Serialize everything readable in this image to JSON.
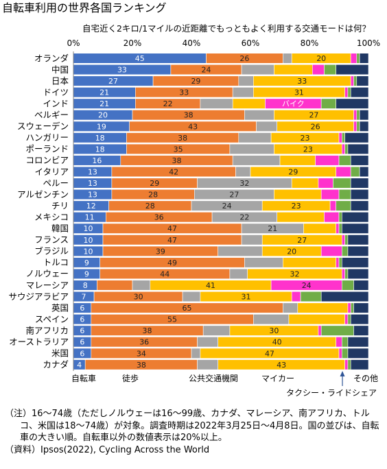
{
  "chart_data": {
    "type": "bar",
    "orientation": "horizontal",
    "stacked": true,
    "title": "自転車利用の世界各国ランキング",
    "subtitle": "自宅近く2キロ/1マイルの近距離でもっともよく利用する交通モードは何？",
    "xlim": [
      0,
      100
    ],
    "x_ticks": [
      "0%",
      "20%",
      "40%",
      "60%",
      "80%",
      "100%"
    ],
    "grid": false,
    "legend_position": "bottom",
    "categories": [
      "オランダ",
      "中国",
      "日本",
      "ドイツ",
      "インド",
      "ベルギー",
      "スウェーデン",
      "ハンガリー",
      "ポーランド",
      "コロンビア",
      "イタリア",
      "ペルー",
      "アルゼンチン",
      "チリ",
      "メキシコ",
      "韓国",
      "フランス",
      "ブラジル",
      "トルコ",
      "ノルウェー",
      "マレーシア",
      "サウジアラビア",
      "英国",
      "スペイン",
      "南アフリカ",
      "オーストラリア",
      "米国",
      "カナダ"
    ],
    "series": [
      {
        "name": "自転車",
        "color": "#4472C4",
        "values": [
          45,
          33,
          27,
          21,
          21,
          20,
          19,
          18,
          18,
          16,
          13,
          13,
          13,
          12,
          11,
          10,
          10,
          10,
          9,
          9,
          8,
          7,
          6,
          6,
          6,
          6,
          6,
          4
        ]
      },
      {
        "name": "徒歩",
        "color": "#ED7D31",
        "values": [
          26,
          24,
          29,
          33,
          22,
          38,
          43,
          38,
          35,
          38,
          42,
          29,
          28,
          28,
          36,
          47,
          47,
          39,
          49,
          44,
          12,
          30,
          65,
          55,
          38,
          36,
          34,
          38
        ]
      },
      {
        "name": "公共交通機関",
        "color": "#A5A5A5",
        "values": [
          3,
          11,
          5,
          7,
          11,
          10,
          7,
          11,
          15,
          16,
          5,
          32,
          27,
          24,
          22,
          21,
          7,
          15,
          13,
          6,
          6,
          6,
          5,
          12,
          9,
          7,
          3,
          7
        ]
      },
      {
        "name": "マイカー",
        "color": "#FFC000",
        "values": [
          20,
          13,
          33,
          31,
          11,
          27,
          26,
          23,
          23,
          12,
          29,
          9,
          16,
          23,
          16,
          11,
          27,
          20,
          18,
          32,
          41,
          31,
          17,
          19,
          30,
          40,
          47,
          43
        ]
      },
      {
        "name": "バイク",
        "color": "#FF33CC",
        "values": [
          2,
          4,
          1,
          1,
          19,
          1,
          1,
          1,
          1,
          8,
          5,
          5,
          6,
          2,
          5,
          1,
          1,
          7,
          1,
          1,
          24,
          3,
          1,
          1,
          1,
          2,
          1,
          1
        ]
      },
      {
        "name": "タクシー・ライドシェア",
        "color": "#70AD47",
        "values": [
          1,
          4,
          1,
          1,
          5,
          1,
          1,
          1,
          1,
          4,
          3,
          6,
          4,
          5,
          1,
          1,
          1,
          2,
          1,
          1,
          4,
          7,
          1,
          1,
          11,
          2,
          2,
          1
        ]
      },
      {
        "name": "その他",
        "color": "#203864",
        "values": [
          3,
          11,
          4,
          6,
          11,
          3,
          3,
          8,
          7,
          6,
          3,
          6,
          6,
          6,
          9,
          9,
          7,
          7,
          9,
          7,
          5,
          16,
          5,
          6,
          5,
          7,
          7,
          6
        ]
      }
    ],
    "annotations": [
      {
        "text": "バイク",
        "category": "インド",
        "series": "バイク"
      }
    ]
  },
  "note": "（注）16～74歳（ただしノルウェーは16～99歳、カナダ、マレーシア、南アフリカ、トルコ、米国は18～74歳）が対象。調査時期は2022年3月25日～4月8日。国の並びは、自転車の大きい順。自転車以外の数値表示は20%以上。",
  "source": "（資料）Ipsos(2022), Cycling Across the World"
}
